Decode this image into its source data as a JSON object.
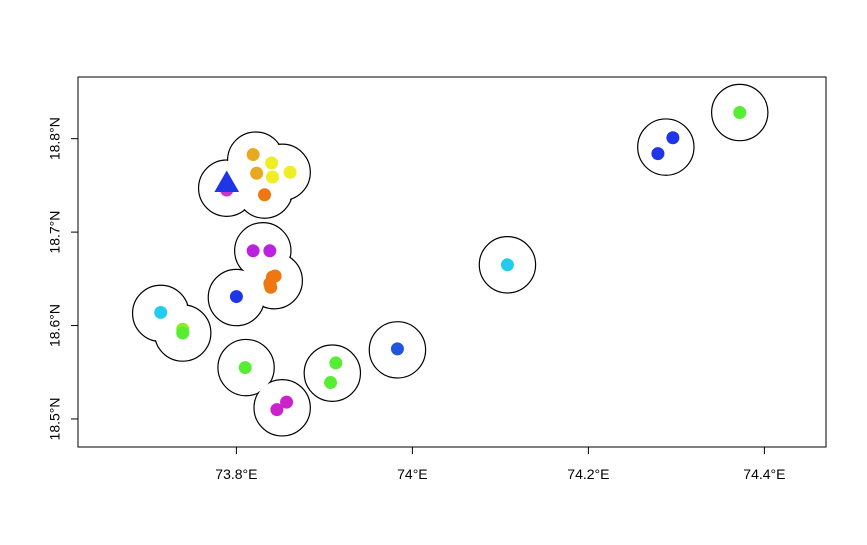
{
  "chart_data": {
    "type": "scatter",
    "title": "",
    "xlabel": "",
    "ylabel": "",
    "xlim": [
      73.62,
      74.47
    ],
    "ylim": [
      18.47,
      18.866
    ],
    "x_ticks": [
      {
        "value": 73.8,
        "label": "73.8°E"
      },
      {
        "value": 74.0,
        "label": "74°E"
      },
      {
        "value": 74.2,
        "label": "74.2°E"
      },
      {
        "value": 74.4,
        "label": "74.4°E"
      }
    ],
    "y_ticks": [
      {
        "value": 18.5,
        "label": "18.5°N"
      },
      {
        "value": 18.6,
        "label": "18.6°N"
      },
      {
        "value": 18.7,
        "label": "18.7°N"
      },
      {
        "value": 18.8,
        "label": "18.8°N"
      }
    ],
    "grid": false,
    "buffer_radius_deg": 0.032,
    "buffers": [
      {
        "x": 73.789,
        "y": 18.747
      },
      {
        "x": 73.822,
        "y": 18.777
      },
      {
        "x": 73.832,
        "y": 18.745
      },
      {
        "x": 73.852,
        "y": 18.764
      },
      {
        "x": 73.83,
        "y": 18.68
      },
      {
        "x": 73.843,
        "y": 18.648
      },
      {
        "x": 73.8,
        "y": 18.63
      },
      {
        "x": 73.714,
        "y": 18.613
      },
      {
        "x": 73.739,
        "y": 18.592
      },
      {
        "x": 73.811,
        "y": 18.555
      },
      {
        "x": 73.852,
        "y": 18.512
      },
      {
        "x": 73.909,
        "y": 18.549
      },
      {
        "x": 73.983,
        "y": 18.574
      },
      {
        "x": 74.108,
        "y": 18.665
      },
      {
        "x": 74.288,
        "y": 18.791
      },
      {
        "x": 74.372,
        "y": 18.828
      }
    ],
    "points": [
      {
        "x": 73.789,
        "y": 18.745,
        "color": "#cc33cc",
        "shape": "circle"
      },
      {
        "x": 73.789,
        "y": 18.752,
        "color": "#1f35e6",
        "shape": "triangle"
      },
      {
        "x": 73.819,
        "y": 18.783,
        "color": "#e8a820",
        "shape": "circle"
      },
      {
        "x": 73.823,
        "y": 18.763,
        "color": "#e8a820",
        "shape": "circle"
      },
      {
        "x": 73.84,
        "y": 18.774,
        "color": "#eeee22",
        "shape": "circle"
      },
      {
        "x": 73.861,
        "y": 18.764,
        "color": "#eeee22",
        "shape": "circle"
      },
      {
        "x": 73.841,
        "y": 18.759,
        "color": "#eeee22",
        "shape": "circle"
      },
      {
        "x": 73.832,
        "y": 18.74,
        "color": "#ee7711",
        "shape": "circle"
      },
      {
        "x": 73.819,
        "y": 18.68,
        "color": "#bb22dd",
        "shape": "circle"
      },
      {
        "x": 73.838,
        "y": 18.68,
        "color": "#bb22dd",
        "shape": "circle"
      },
      {
        "x": 73.841,
        "y": 18.652,
        "color": "#ee7711",
        "shape": "circle"
      },
      {
        "x": 73.838,
        "y": 18.645,
        "color": "#ee7711",
        "shape": "circle"
      },
      {
        "x": 73.844,
        "y": 18.653,
        "color": "#ee7711",
        "shape": "circle"
      },
      {
        "x": 73.839,
        "y": 18.641,
        "color": "#ee7711",
        "shape": "circle"
      },
      {
        "x": 73.8,
        "y": 18.631,
        "color": "#1f35e6",
        "shape": "circle"
      },
      {
        "x": 73.714,
        "y": 18.614,
        "color": "#22ccee",
        "shape": "circle"
      },
      {
        "x": 73.739,
        "y": 18.596,
        "color": "#88ee22",
        "shape": "circle"
      },
      {
        "x": 73.739,
        "y": 18.592,
        "color": "#55ee33",
        "shape": "circle"
      },
      {
        "x": 73.81,
        "y": 18.555,
        "color": "#55ee33",
        "shape": "circle"
      },
      {
        "x": 73.846,
        "y": 18.51,
        "color": "#cc22cc",
        "shape": "circle"
      },
      {
        "x": 73.857,
        "y": 18.518,
        "color": "#cc22cc",
        "shape": "circle"
      },
      {
        "x": 73.913,
        "y": 18.56,
        "color": "#55ee33",
        "shape": "circle"
      },
      {
        "x": 73.907,
        "y": 18.539,
        "color": "#55ee33",
        "shape": "circle"
      },
      {
        "x": 73.983,
        "y": 18.575,
        "color": "#2255dd",
        "shape": "circle"
      },
      {
        "x": 74.108,
        "y": 18.665,
        "color": "#22ccee",
        "shape": "circle"
      },
      {
        "x": 74.296,
        "y": 18.801,
        "color": "#1f35e6",
        "shape": "circle"
      },
      {
        "x": 74.279,
        "y": 18.784,
        "color": "#1f35e6",
        "shape": "circle"
      },
      {
        "x": 74.372,
        "y": 18.828,
        "color": "#55ee33",
        "shape": "circle"
      }
    ]
  }
}
